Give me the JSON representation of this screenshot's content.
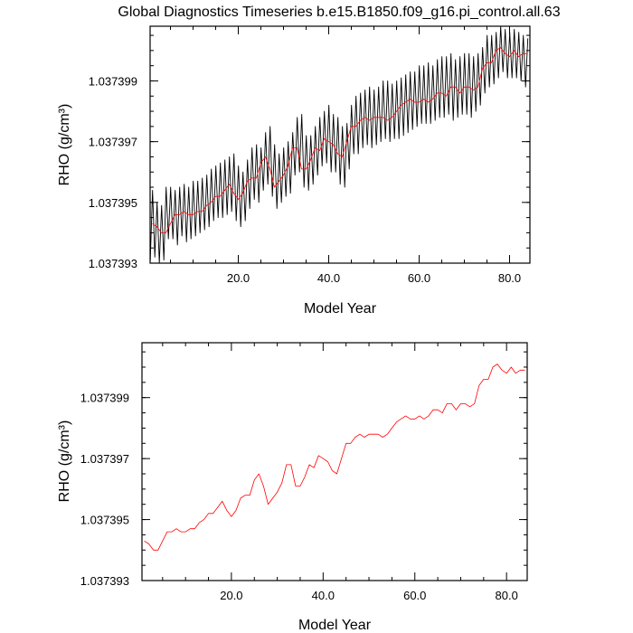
{
  "chart_data": [
    {
      "type": "line",
      "title": "Global Diagnostics Timeseries b.e15.B1850.f09_g16.pi_control.all.63",
      "xlabel": "Model Year",
      "ylabel": "RHO (g/cm³)",
      "xlim": [
        0.5,
        84.5
      ],
      "ylim": [
        1.037393,
        1.0374008
      ],
      "xticks": [
        "20.0",
        "40.0",
        "60.0",
        "80.0"
      ],
      "yticks": [
        "1.037393",
        "1.037395",
        "1.037397",
        "1.037399"
      ],
      "grid": false,
      "series": [
        {
          "color": "#000000",
          "style": "monthly (seasonal cycle)",
          "x": [
            0.54,
            1.04,
            1.54,
            2.04,
            2.54,
            3.04,
            3.54,
            4.04,
            4.54,
            5.04,
            5.54,
            6.04,
            6.54,
            7.04,
            7.54,
            8.04,
            8.54,
            9.04,
            9.54,
            10.04,
            10.54,
            11.04,
            11.54,
            12.04,
            12.54,
            13.04,
            13.54,
            14.04,
            14.54,
            15.04,
            15.54,
            16.04,
            16.54,
            17.04,
            17.54,
            18.04,
            18.54,
            19.04,
            19.54,
            20.04,
            20.54,
            21.04,
            21.54,
            22.04,
            22.54,
            23.04,
            23.54,
            24.04,
            24.54,
            25.04,
            25.54,
            26.04,
            26.54,
            27.04,
            27.54,
            28.04,
            28.54,
            29.04,
            29.54,
            30.04,
            30.54,
            31.04,
            31.54,
            32.04,
            32.54,
            33.04,
            33.54,
            34.04,
            34.54,
            35.04,
            35.54,
            36.04,
            36.54,
            37.04,
            37.54,
            38.04,
            38.54,
            39.04,
            39.54,
            40.04,
            40.54,
            41.04,
            41.54,
            42.04,
            42.54,
            43.04,
            43.54,
            44.04,
            44.54,
            45.04,
            45.54,
            46.04,
            46.54,
            47.04,
            47.54,
            48.04,
            48.54,
            49.04,
            49.54,
            50.04,
            50.54,
            51.04,
            51.54,
            52.04,
            52.54,
            53.04,
            53.54,
            54.04,
            54.54,
            55.04,
            55.54,
            56.04,
            56.54,
            57.04,
            57.54,
            58.04,
            58.54,
            59.04,
            59.54,
            60.04,
            60.54,
            61.04,
            61.54,
            62.04,
            62.54,
            63.04,
            63.54,
            64.04,
            64.54,
            65.04,
            65.54,
            66.04,
            66.54,
            67.04,
            67.54,
            68.04,
            68.54,
            69.04,
            69.54,
            70.04,
            70.54,
            71.04,
            71.54,
            72.04,
            72.54,
            73.04,
            73.54,
            74.04,
            74.54,
            75.04,
            75.54,
            76.04,
            76.54,
            77.04,
            77.54,
            78.04,
            78.54,
            79.04,
            79.54,
            80.04,
            80.54,
            81.04,
            81.54,
            82.04,
            82.54,
            83.04,
            83.54,
            84.04
          ],
          "values": [
            1.0373931,
            1.0373954,
            1.0373932,
            1.037395,
            1.037393,
            1.0373949,
            1.0373931,
            1.0373955,
            1.0373938,
            1.0373955,
            1.0373938,
            1.0373954,
            1.0373936,
            1.0373955,
            1.0373939,
            1.0373956,
            1.0373937,
            1.0373955,
            1.0373938,
            1.0373957,
            1.0373939,
            1.0373957,
            1.037394,
            1.0373958,
            1.0373941,
            1.0373959,
            1.0373942,
            1.0373961,
            1.0373944,
            1.0373962,
            1.0373945,
            1.0373963,
            1.0373945,
            1.0373964,
            1.0373946,
            1.0373965,
            1.0373947,
            1.0373966,
            1.0373944,
            1.0373962,
            1.0373942,
            1.037396,
            1.0373944,
            1.0373964,
            1.0373948,
            1.0373968,
            1.0373951,
            1.0373969,
            1.037395,
            1.0373968,
            1.0373954,
            1.0373973,
            1.0373956,
            1.0373975,
            1.0373952,
            1.0373969,
            1.0373948,
            1.0373966,
            1.037395,
            1.0373968,
            1.0373952,
            1.037397,
            1.0373953,
            1.0373973,
            1.0373959,
            1.0373978,
            1.037396,
            1.0373979,
            1.0373955,
            1.0373972,
            1.0373954,
            1.0373972,
            1.0373956,
            1.0373975,
            1.0373959,
            1.0373978,
            1.0373962,
            1.037398,
            1.0373963,
            1.0373982,
            1.037396,
            1.0373979,
            1.037396,
            1.0373978,
            1.0373956,
            1.0373975,
            1.0373955,
            1.0373976,
            1.0373961,
            1.0373982,
            1.0373966,
            1.0373985,
            1.0373966,
            1.0373986,
            1.0373968,
            1.0373987,
            1.0373969,
            1.0373988,
            1.0373968,
            1.0373987,
            1.0373969,
            1.0373988,
            1.037397,
            1.037399,
            1.0373971,
            1.037399,
            1.037397,
            1.0373989,
            1.0373971,
            1.037399,
            1.0373971,
            1.0373991,
            1.0373972,
            1.0373992,
            1.0373973,
            1.0373993,
            1.0373974,
            1.0373993,
            1.0373975,
            1.0373995,
            1.0373976,
            1.0373995,
            1.0373976,
            1.0373996,
            1.0373976,
            1.0373995,
            1.0373977,
            1.0373997,
            1.0373978,
            1.0373998,
            1.0373978,
            1.0373998,
            1.0373979,
            1.0373999,
            1.0373977,
            1.0373997,
            1.0373978,
            1.0373998,
            1.0373979,
            1.0373999,
            1.0373979,
            1.0373999,
            1.0373978,
            1.0373998,
            1.037398,
            1.0373999,
            1.0373982,
            1.0374001,
            1.0373986,
            1.0374005,
            1.0373988,
            1.0374005,
            1.0373989,
            1.0374006,
            1.0373991,
            1.0374008,
            1.0373993,
            1.0374007,
            1.0373991,
            1.0374006,
            1.0373991,
            1.0374007,
            1.0373991,
            1.0374006,
            1.037399,
            1.0374005,
            1.0373988,
            1.0374004
          ]
        },
        {
          "color": "#ff0000",
          "style": "annual mean",
          "x": [
            1,
            2,
            3,
            4,
            5,
            6,
            7,
            8,
            9,
            10,
            11,
            12,
            13,
            14,
            15,
            16,
            17,
            18,
            19,
            20,
            21,
            22,
            23,
            24,
            25,
            26,
            27,
            28,
            29,
            30,
            31,
            32,
            33,
            34,
            35,
            36,
            37,
            38,
            39,
            40,
            41,
            42,
            43,
            44,
            45,
            46,
            47,
            48,
            49,
            50,
            51,
            52,
            53,
            54,
            55,
            56,
            57,
            58,
            59,
            60,
            61,
            62,
            63,
            64,
            65,
            66,
            67,
            68,
            69,
            70,
            71,
            72,
            73,
            74,
            75,
            76,
            77,
            78,
            79,
            80,
            81,
            82,
            83,
            84
          ],
          "values": [
            1.0373943,
            1.0373942,
            1.037394,
            1.037394,
            1.0373943,
            1.0373946,
            1.0373946,
            1.0373947,
            1.0373946,
            1.0373946,
            1.0373947,
            1.0373947,
            1.0373949,
            1.037395,
            1.0373952,
            1.0373952,
            1.0373954,
            1.0373956,
            1.0373953,
            1.0373951,
            1.0373953,
            1.0373957,
            1.0373958,
            1.0373958,
            1.0373963,
            1.0373965,
            1.0373961,
            1.0373955,
            1.0373957,
            1.0373959,
            1.0373962,
            1.0373968,
            1.0373968,
            1.0373961,
            1.0373961,
            1.0373964,
            1.0373968,
            1.0373967,
            1.0373971,
            1.037397,
            1.0373969,
            1.0373966,
            1.0373965,
            1.037397,
            1.0373975,
            1.0373975,
            1.0373977,
            1.0373978,
            1.0373977,
            1.0373978,
            1.0373978,
            1.0373978,
            1.0373977,
            1.0373978,
            1.037398,
            1.0373982,
            1.0373983,
            1.0373984,
            1.0373983,
            1.0373983,
            1.0373984,
            1.0373983,
            1.0373984,
            1.0373986,
            1.0373986,
            1.0373985,
            1.0373988,
            1.0373988,
            1.0373986,
            1.0373988,
            1.0373988,
            1.0373987,
            1.0373988,
            1.0373994,
            1.0373996,
            1.0373996,
            1.0374,
            1.0374001,
            1.0373999,
            1.0373998,
            1.0374,
            1.0373998,
            1.0373999,
            1.0373999
          ]
        }
      ]
    },
    {
      "type": "line",
      "title": "",
      "xlabel": "Model Year",
      "ylabel": "RHO (g/cm³)",
      "xlim": [
        0.5,
        84.5
      ],
      "ylim": [
        1.037393,
        1.0374008
      ],
      "xticks": [
        "20.0",
        "40.0",
        "60.0",
        "80.0"
      ],
      "yticks": [
        "1.037393",
        "1.037395",
        "1.037397",
        "1.037399"
      ],
      "grid": false,
      "series": [
        {
          "color": "#ff0000",
          "style": "annual mean",
          "x": [
            1,
            2,
            3,
            4,
            5,
            6,
            7,
            8,
            9,
            10,
            11,
            12,
            13,
            14,
            15,
            16,
            17,
            18,
            19,
            20,
            21,
            22,
            23,
            24,
            25,
            26,
            27,
            28,
            29,
            30,
            31,
            32,
            33,
            34,
            35,
            36,
            37,
            38,
            39,
            40,
            41,
            42,
            43,
            44,
            45,
            46,
            47,
            48,
            49,
            50,
            51,
            52,
            53,
            54,
            55,
            56,
            57,
            58,
            59,
            60,
            61,
            62,
            63,
            64,
            65,
            66,
            67,
            68,
            69,
            70,
            71,
            72,
            73,
            74,
            75,
            76,
            77,
            78,
            79,
            80,
            81,
            82,
            83,
            84
          ],
          "values": [
            1.0373943,
            1.0373942,
            1.037394,
            1.037394,
            1.0373943,
            1.0373946,
            1.0373946,
            1.0373947,
            1.0373946,
            1.0373946,
            1.0373947,
            1.0373947,
            1.0373949,
            1.037395,
            1.0373952,
            1.0373952,
            1.0373954,
            1.0373956,
            1.0373953,
            1.0373951,
            1.0373953,
            1.0373957,
            1.0373958,
            1.0373958,
            1.0373963,
            1.0373965,
            1.0373961,
            1.0373955,
            1.0373957,
            1.0373959,
            1.0373962,
            1.0373968,
            1.0373968,
            1.0373961,
            1.0373961,
            1.0373964,
            1.0373968,
            1.0373967,
            1.0373971,
            1.037397,
            1.0373969,
            1.0373966,
            1.0373965,
            1.037397,
            1.0373975,
            1.0373975,
            1.0373977,
            1.0373978,
            1.0373977,
            1.0373978,
            1.0373978,
            1.0373978,
            1.0373977,
            1.0373978,
            1.037398,
            1.0373982,
            1.0373983,
            1.0373984,
            1.0373983,
            1.0373983,
            1.0373984,
            1.0373983,
            1.0373984,
            1.0373986,
            1.0373986,
            1.0373985,
            1.0373988,
            1.0373988,
            1.0373986,
            1.0373988,
            1.0373988,
            1.0373987,
            1.0373988,
            1.0373994,
            1.0373996,
            1.0373996,
            1.0374,
            1.0374001,
            1.0373999,
            1.0373998,
            1.0374,
            1.0373998,
            1.0373999,
            1.0373999
          ]
        }
      ]
    }
  ]
}
